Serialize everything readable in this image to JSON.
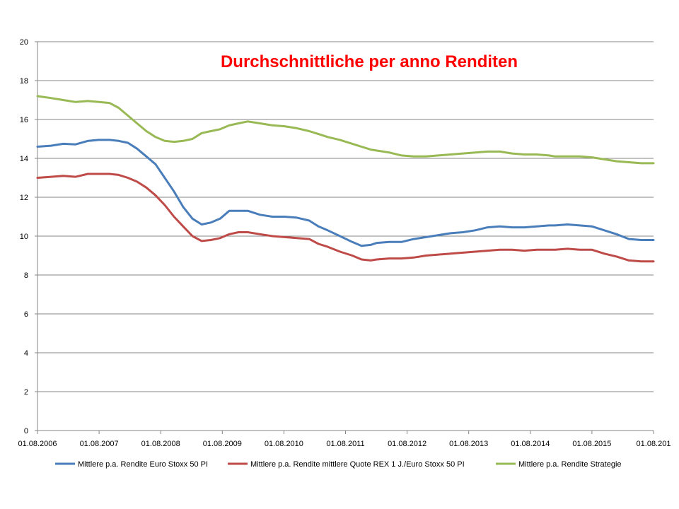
{
  "chart_data": {
    "type": "line",
    "title": "Durchschnittliche per anno Renditen",
    "xlabel": "",
    "ylabel": "",
    "ylim": [
      0,
      20
    ],
    "y_ticks": [
      "0",
      "2",
      "4",
      "6",
      "8",
      "10",
      "12",
      "14",
      "16",
      "18",
      "20"
    ],
    "x_ticks": [
      "01.08.2006",
      "01.08.2007",
      "01.08.2008",
      "01.08.2009",
      "01.08.2010",
      "01.08.2011",
      "01.08.2012",
      "01.08.2013",
      "01.08.2014",
      "01.08.2015",
      "01.08.201"
    ],
    "xlim": [
      2006.58,
      2016.6
    ],
    "grid": true,
    "legend_position": "bottom",
    "series": [
      {
        "name": "Mittlere p.a. Rendite Euro Stoxx 50 PI",
        "color": "#4a7ebb",
        "x": [
          2006.58,
          2006.8,
          2007.0,
          2007.2,
          2007.4,
          2007.58,
          2007.75,
          2007.9,
          2008.05,
          2008.2,
          2008.35,
          2008.5,
          2008.65,
          2008.8,
          2008.95,
          2009.1,
          2009.25,
          2009.4,
          2009.55,
          2009.7,
          2009.85,
          2010.0,
          2010.2,
          2010.4,
          2010.6,
          2010.8,
          2011.0,
          2011.15,
          2011.3,
          2011.5,
          2011.7,
          2011.85,
          2012.0,
          2012.1,
          2012.3,
          2012.5,
          2012.7,
          2012.9,
          2013.1,
          2013.3,
          2013.5,
          2013.7,
          2013.9,
          2014.1,
          2014.3,
          2014.5,
          2014.7,
          2014.9,
          2015.0,
          2015.2,
          2015.4,
          2015.6,
          2015.8,
          2016.0,
          2016.2,
          2016.4,
          2016.6
        ],
        "values": [
          14.6,
          14.65,
          14.75,
          14.72,
          14.9,
          14.95,
          14.95,
          14.9,
          14.8,
          14.5,
          14.1,
          13.7,
          13.0,
          12.3,
          11.5,
          10.9,
          10.6,
          10.7,
          10.9,
          11.3,
          11.3,
          11.3,
          11.1,
          11.0,
          11.0,
          10.95,
          10.8,
          10.5,
          10.3,
          10.0,
          9.7,
          9.5,
          9.55,
          9.65,
          9.7,
          9.7,
          9.85,
          9.95,
          10.05,
          10.15,
          10.2,
          10.3,
          10.45,
          10.5,
          10.45,
          10.45,
          10.5,
          10.55,
          10.55,
          10.6,
          10.55,
          10.5,
          10.3,
          10.1,
          9.85,
          9.8,
          9.8
        ]
      },
      {
        "name": "Mittlere p.a. Rendite mittlere Quote REX 1 J./Euro Stoxx 50 PI",
        "color": "#be4b48",
        "x": [
          2006.58,
          2006.8,
          2007.0,
          2007.2,
          2007.4,
          2007.58,
          2007.75,
          2007.9,
          2008.05,
          2008.2,
          2008.35,
          2008.5,
          2008.65,
          2008.8,
          2008.95,
          2009.1,
          2009.25,
          2009.4,
          2009.55,
          2009.7,
          2009.85,
          2010.0,
          2010.2,
          2010.4,
          2010.6,
          2010.8,
          2011.0,
          2011.15,
          2011.3,
          2011.5,
          2011.7,
          2011.85,
          2012.0,
          2012.1,
          2012.3,
          2012.5,
          2012.7,
          2012.9,
          2013.1,
          2013.3,
          2013.5,
          2013.7,
          2013.9,
          2014.1,
          2014.3,
          2014.5,
          2014.7,
          2014.9,
          2015.0,
          2015.2,
          2015.4,
          2015.6,
          2015.8,
          2016.0,
          2016.2,
          2016.4,
          2016.6
        ],
        "values": [
          13.0,
          13.05,
          13.1,
          13.05,
          13.2,
          13.2,
          13.2,
          13.15,
          13.0,
          12.8,
          12.5,
          12.1,
          11.6,
          11.0,
          10.5,
          10.0,
          9.75,
          9.8,
          9.9,
          10.1,
          10.2,
          10.2,
          10.1,
          10.0,
          9.95,
          9.9,
          9.85,
          9.6,
          9.45,
          9.2,
          9.0,
          8.8,
          8.75,
          8.8,
          8.85,
          8.85,
          8.9,
          9.0,
          9.05,
          9.1,
          9.15,
          9.2,
          9.25,
          9.3,
          9.3,
          9.25,
          9.3,
          9.3,
          9.3,
          9.35,
          9.3,
          9.3,
          9.1,
          8.95,
          8.75,
          8.7,
          8.7
        ]
      },
      {
        "name": "Mittlere p.a. Rendite Strategie",
        "color": "#98b954",
        "x": [
          2006.58,
          2006.8,
          2007.0,
          2007.2,
          2007.4,
          2007.58,
          2007.75,
          2007.9,
          2008.05,
          2008.2,
          2008.35,
          2008.5,
          2008.65,
          2008.8,
          2008.95,
          2009.1,
          2009.25,
          2009.4,
          2009.55,
          2009.7,
          2009.85,
          2010.0,
          2010.2,
          2010.4,
          2010.6,
          2010.8,
          2011.0,
          2011.15,
          2011.3,
          2011.5,
          2011.7,
          2011.85,
          2012.0,
          2012.1,
          2012.3,
          2012.5,
          2012.7,
          2012.9,
          2013.1,
          2013.3,
          2013.5,
          2013.7,
          2013.9,
          2014.1,
          2014.3,
          2014.5,
          2014.7,
          2014.9,
          2015.0,
          2015.2,
          2015.4,
          2015.6,
          2015.8,
          2016.0,
          2016.2,
          2016.4,
          2016.6
        ],
        "values": [
          17.2,
          17.1,
          17.0,
          16.9,
          16.95,
          16.9,
          16.85,
          16.6,
          16.2,
          15.8,
          15.4,
          15.1,
          14.9,
          14.85,
          14.9,
          15.0,
          15.3,
          15.4,
          15.5,
          15.7,
          15.8,
          15.9,
          15.8,
          15.7,
          15.65,
          15.55,
          15.4,
          15.25,
          15.1,
          14.95,
          14.75,
          14.6,
          14.45,
          14.4,
          14.3,
          14.15,
          14.1,
          14.1,
          14.15,
          14.2,
          14.25,
          14.3,
          14.35,
          14.35,
          14.25,
          14.2,
          14.2,
          14.15,
          14.1,
          14.1,
          14.1,
          14.05,
          13.95,
          13.85,
          13.8,
          13.75,
          13.75
        ]
      }
    ]
  }
}
